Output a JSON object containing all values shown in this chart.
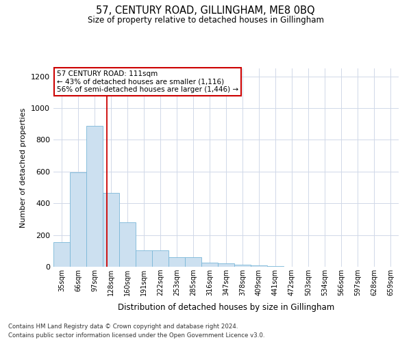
{
  "title": "57, CENTURY ROAD, GILLINGHAM, ME8 0BQ",
  "subtitle": "Size of property relative to detached houses in Gillingham",
  "xlabel": "Distribution of detached houses by size in Gillingham",
  "ylabel": "Number of detached properties",
  "bar_labels": [
    "35sqm",
    "66sqm",
    "97sqm",
    "128sqm",
    "160sqm",
    "191sqm",
    "222sqm",
    "253sqm",
    "285sqm",
    "316sqm",
    "347sqm",
    "378sqm",
    "409sqm",
    "441sqm",
    "472sqm",
    "503sqm",
    "534sqm",
    "566sqm",
    "597sqm",
    "628sqm",
    "659sqm"
  ],
  "bar_values": [
    155,
    595,
    890,
    465,
    280,
    105,
    105,
    60,
    60,
    25,
    20,
    12,
    10,
    3,
    2,
    1,
    1,
    0,
    0,
    0,
    0
  ],
  "bar_color": "#cce0f0",
  "bar_edge_color": "#7ab8d8",
  "background_color": "#ffffff",
  "grid_color": "#d0d8e8",
  "annotation_text": "57 CENTURY ROAD: 111sqm\n← 43% of detached houses are smaller (1,116)\n56% of semi-detached houses are larger (1,446) →",
  "annotation_box_color": "#cc0000",
  "vline_x": 2.76,
  "vline_color": "#cc0000",
  "ylim": [
    0,
    1250
  ],
  "yticks": [
    0,
    200,
    400,
    600,
    800,
    1000,
    1200
  ],
  "footer_line1": "Contains HM Land Registry data © Crown copyright and database right 2024.",
  "footer_line2": "Contains public sector information licensed under the Open Government Licence v3.0."
}
